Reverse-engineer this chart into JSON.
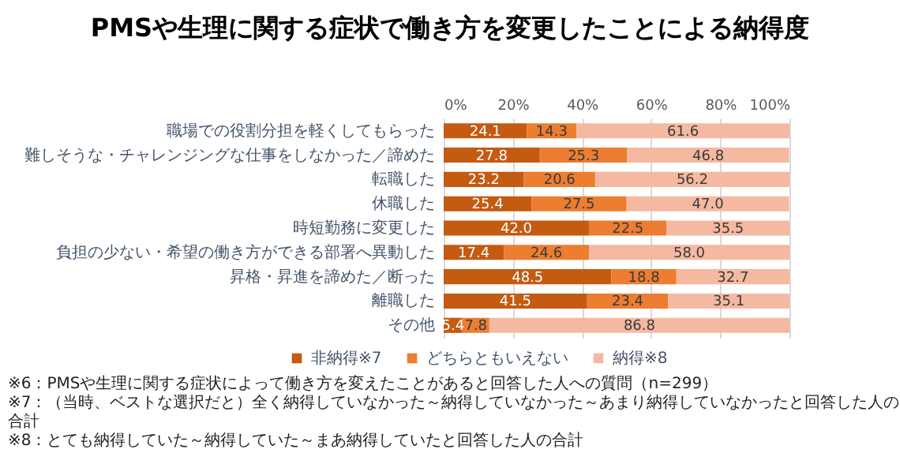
{
  "chart_data": {
    "type": "bar",
    "orientation": "horizontal",
    "stacked": true,
    "title": "PMSや生理に関する症状で働き方を変更したことによる納得度",
    "categories": [
      "職場での役割分担を軽くしてもらった",
      "難しそうな・チャレンジングな仕事をしなかった／諦めた",
      "転職した",
      "休職した",
      "時短勤務に変更した",
      "負担の少ない・希望の働き方ができる部署へ異動した",
      "昇格・昇進を諦めた／断った",
      "離職した",
      "その他"
    ],
    "series": [
      {
        "name": "非納得※7",
        "color": "#c55a11",
        "values": [
          24.1,
          27.8,
          23.2,
          25.4,
          42.0,
          17.4,
          48.5,
          41.5,
          5.4
        ],
        "value_labels": [
          "24.1",
          "27.8",
          "23.2",
          "25.4",
          "42.0",
          "17.4",
          "48.5",
          "41.5",
          "5.4"
        ]
      },
      {
        "name": "どちらともいえない",
        "color": "#ed7d31",
        "values": [
          14.3,
          25.3,
          20.6,
          27.5,
          22.5,
          24.6,
          18.8,
          23.4,
          7.8
        ],
        "value_labels": [
          "14.3",
          "25.3",
          "20.6",
          "27.5",
          "22.5",
          "24.6",
          "18.8",
          "23.4",
          "7.8"
        ]
      },
      {
        "name": "納得※8",
        "color": "#f4b9a0",
        "values": [
          61.6,
          46.8,
          56.2,
          47.0,
          35.5,
          58.0,
          32.7,
          35.1,
          86.8
        ],
        "value_labels": [
          "61.6",
          "46.8",
          "56.2",
          "47.0",
          "35.5",
          "58.0",
          "32.7",
          "35.1",
          "86.8"
        ]
      }
    ],
    "xlim": [
      0,
      100
    ],
    "xticks": [
      {
        "value": 0,
        "label": "0%"
      },
      {
        "value": 20,
        "label": "20%"
      },
      {
        "value": 40,
        "label": "40%"
      },
      {
        "value": 60,
        "label": "60%"
      },
      {
        "value": 80,
        "label": "80%"
      },
      {
        "value": 100,
        "label": "100%"
      }
    ],
    "grid": "x",
    "legend": "bottom",
    "annotations": [
      "※6：PMSや生理に関する症状によって働き方を変えたことがあると回答した人への質問（n=299）",
      "※7：（当時、ベストな選択だと）全く納得していなかった～納得していなかった～あまり納得していなかったと回答した人の合計",
      "※8：とても納得していた～納得していた～まあ納得していたと回答した人の合計"
    ]
  }
}
